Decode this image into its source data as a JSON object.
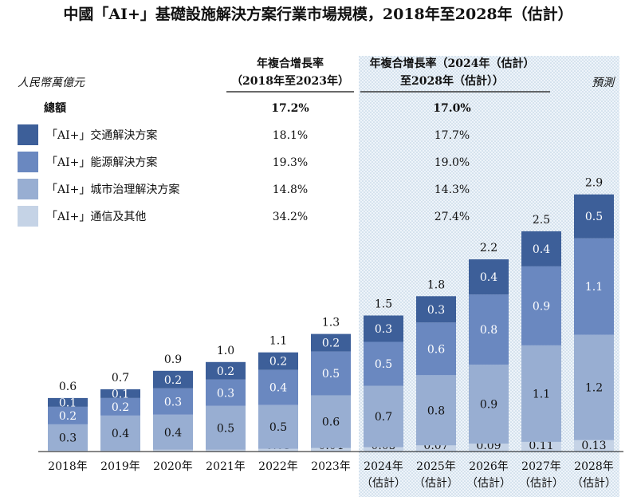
{
  "chart_data": {
    "type": "bar",
    "stacked": true,
    "title": "中國「AI+」基礎設施解決方案行業市場規模，2018年至2028年（估計）",
    "unit_label": "人民幣萬億元",
    "forecast_label": "預測",
    "categories": [
      "2018年",
      "2019年",
      "2020年",
      "2021年",
      "2022年",
      "2023年",
      "2024年",
      "2025年",
      "2026年",
      "2027年",
      "2028年"
    ],
    "category_subs": [
      "",
      "",
      "",
      "",
      "",
      "",
      "（估計）",
      "（估計）",
      "（估計）",
      "（估計）",
      "（估計）"
    ],
    "forecast_start_index": 6,
    "series": [
      {
        "name": "「AI+」通信及其他",
        "color": "#c5d3e6",
        "values": [
          0.01,
          0.01,
          0.02,
          0.02,
          0.03,
          0.04,
          0.05,
          0.07,
          0.09,
          0.11,
          0.13
        ],
        "labels": [
          "0.01",
          "0.01",
          "0.02",
          "0.02",
          "0.03",
          "0.04",
          "0.05",
          "0.07",
          "0.09",
          "0.11",
          "0.13"
        ],
        "cagr_hist": "34.2%",
        "cagr_fore": "27.4%"
      },
      {
        "name": "「AI+」城市治理解決方案",
        "color": "#98aed2",
        "values": [
          0.3,
          0.4,
          0.4,
          0.5,
          0.5,
          0.6,
          0.7,
          0.8,
          0.9,
          1.1,
          1.2
        ],
        "labels": [
          "0.3",
          "0.4",
          "0.4",
          "0.5",
          "0.5",
          "0.6",
          "0.7",
          "0.8",
          "0.9",
          "1.1",
          "1.2"
        ],
        "cagr_hist": "14.8%",
        "cagr_fore": "14.3%"
      },
      {
        "name": "「AI+」能源解決方案",
        "color": "#6a88c0",
        "values": [
          0.2,
          0.2,
          0.3,
          0.3,
          0.4,
          0.5,
          0.5,
          0.6,
          0.8,
          0.9,
          1.1
        ],
        "labels": [
          "0.2",
          "0.2",
          "0.3",
          "0.3",
          "0.4",
          "0.5",
          "0.5",
          "0.6",
          "0.8",
          "0.9",
          "1.1"
        ],
        "cagr_hist": "19.3%",
        "cagr_fore": "19.0%"
      },
      {
        "name": "「AI+」交通解決方案",
        "color": "#3d5f99",
        "values": [
          0.1,
          0.1,
          0.2,
          0.2,
          0.2,
          0.2,
          0.3,
          0.3,
          0.4,
          0.4,
          0.5
        ],
        "labels": [
          "0.1",
          "0.1",
          "0.2",
          "0.2",
          "0.2",
          "0.2",
          "0.3",
          "0.3",
          "0.4",
          "0.4",
          "0.5"
        ],
        "cagr_hist": "18.1%",
        "cagr_fore": "17.7%"
      }
    ],
    "totals": [
      0.6,
      0.7,
      0.9,
      1.0,
      1.1,
      1.3,
      1.5,
      1.8,
      2.2,
      2.5,
      2.9
    ],
    "total_labels": [
      "0.6",
      "0.7",
      "0.9",
      "1.0",
      "1.1",
      "1.3",
      "1.5",
      "1.8",
      "2.2",
      "2.5",
      "2.9"
    ],
    "cagr_header_hist": [
      "年複合增長率",
      "（2018年至2023年）"
    ],
    "cagr_header_fore": [
      "年複合增長率（2024年（估計）",
      "至2028年（估計））"
    ],
    "total_row": {
      "label": "總額",
      "cagr_hist": "17.2%",
      "cagr_fore": "17.0%"
    },
    "ylim": [
      0,
      3.0
    ]
  }
}
